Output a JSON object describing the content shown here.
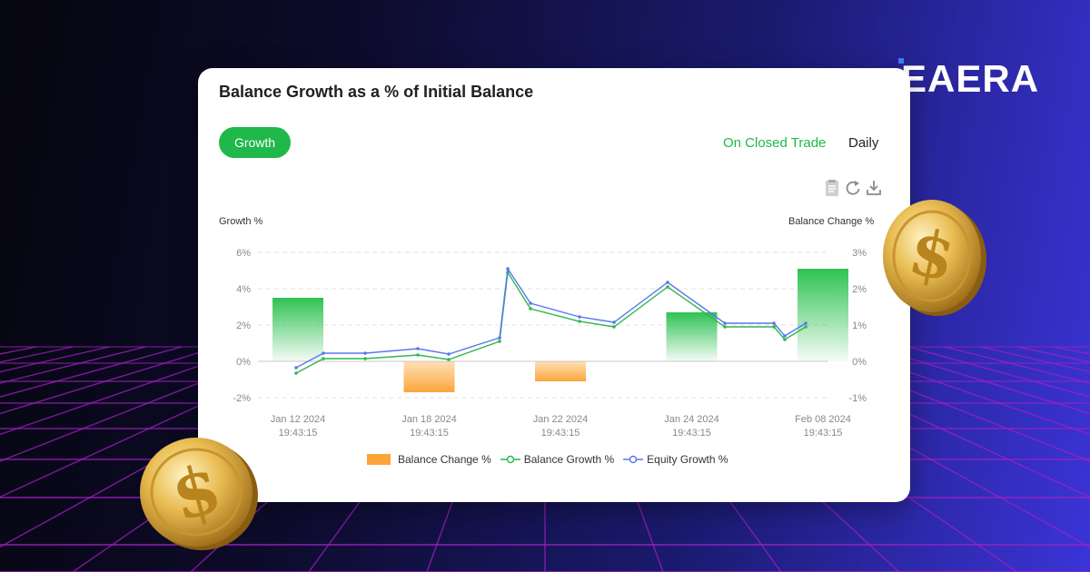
{
  "brand": {
    "name": "EAERA"
  },
  "card": {
    "title": "Balance Growth as a % of Initial Balance",
    "growth_button": "Growth",
    "view_options": [
      "On Closed Trade",
      "Daily"
    ],
    "active_view": "On Closed Trade",
    "toolbar_icons": [
      "data-view-icon",
      "refresh-icon",
      "download-icon"
    ]
  },
  "colors": {
    "accent": "#1fb84a",
    "balance_change": "#fca63a",
    "balance_growth": "#2fb84f",
    "equity_growth": "#5b76f0"
  },
  "chart_data": {
    "type": "bar",
    "ylabel": "Growth %",
    "y2label": "Balance Change %",
    "ylim": [
      -2,
      6
    ],
    "y2lim": [
      -1,
      3
    ],
    "yticks": [
      "6%",
      "4%",
      "2%",
      "0%",
      "-2%"
    ],
    "y2ticks": [
      "3%",
      "2%",
      "1%",
      "0%",
      "-1%"
    ],
    "xtick_labels": [
      [
        "Jan 12 2024",
        "19:43:15"
      ],
      [
        "Jan 18 2024",
        "19:43:15"
      ],
      [
        "Jan 22 2024",
        "19:43:15"
      ],
      [
        "Jan 24 2024",
        "19:43:15"
      ],
      [
        "Feb 08 2024",
        "19:43:15"
      ]
    ],
    "legend": [
      "Balance Change %",
      "Balance Growth %",
      "Equity Growth %"
    ],
    "legend_position": "bottom",
    "bars": {
      "name": "Balance Change %",
      "axis": "right",
      "values": [
        1.75,
        -0.85,
        -0.55,
        1.35,
        2.55
      ],
      "x_index": [
        0,
        1,
        2,
        3,
        4
      ]
    },
    "series": [
      {
        "name": "Balance Growth %",
        "values": [
          -0.65,
          0.15,
          0.15,
          0.35,
          0.1,
          1.1,
          4.9,
          2.9,
          2.2,
          1.9,
          4.1,
          1.9,
          1.9,
          1.2,
          1.9
        ]
      },
      {
        "name": "Equity Growth %",
        "values": [
          -0.35,
          0.45,
          0.45,
          0.7,
          0.4,
          1.3,
          5.1,
          3.2,
          2.45,
          2.15,
          4.35,
          2.1,
          2.1,
          1.4,
          2.1
        ]
      }
    ]
  }
}
